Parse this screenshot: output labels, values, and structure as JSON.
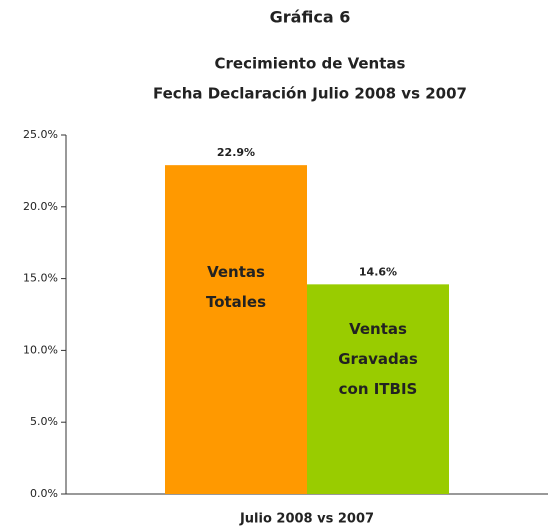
{
  "chart_data": {
    "type": "bar",
    "title": "Gráfica 6",
    "subtitle": [
      "Crecimiento de Ventas",
      "Fecha Declaración Julio 2008 vs 2007"
    ],
    "categories": [
      "Julio 2008 vs 2007"
    ],
    "series": [
      {
        "name": "Ventas Totales",
        "color": "#ff9900",
        "values": [
          22.9
        ],
        "value_labels": [
          "22.9%"
        ]
      },
      {
        "name": "Ventas Gravadas con ITBIS",
        "color": "#99cc00",
        "values": [
          14.6
        ],
        "value_labels": [
          "14.6%"
        ]
      }
    ],
    "ylim": [
      0,
      25
    ],
    "yticks": [
      {
        "value": 0,
        "label": "0.0%"
      },
      {
        "value": 5,
        "label": "5.0%"
      },
      {
        "value": 10,
        "label": "10.0%"
      },
      {
        "value": 15,
        "label": "15.0%"
      },
      {
        "value": 20,
        "label": "20.0%"
      },
      {
        "value": 25,
        "label": "25.0%"
      }
    ],
    "grid": false
  }
}
